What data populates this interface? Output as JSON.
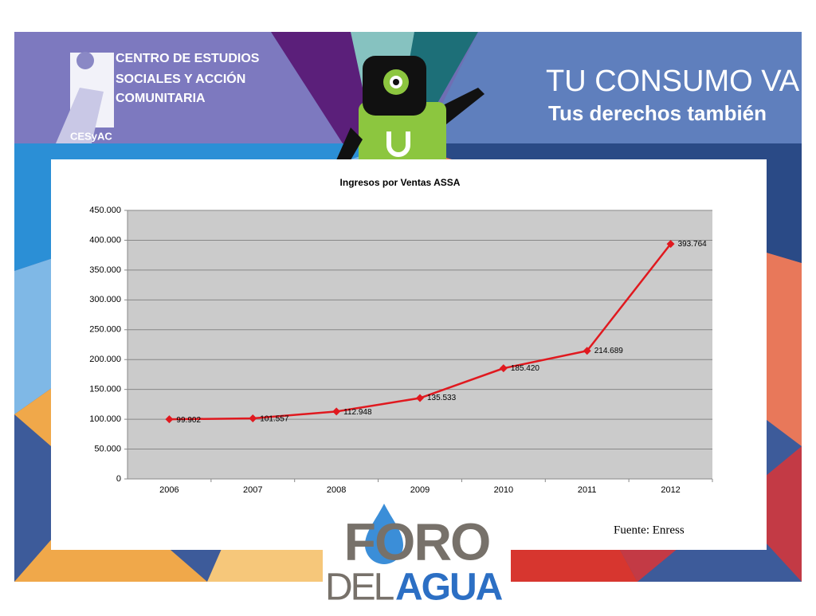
{
  "header": {
    "org_lines": [
      "CENTRO DE ESTUDIOS",
      "SOCIALES Y ACCIÓN",
      "COMUNITARIA"
    ],
    "org_short": "CESyAC",
    "campaign_title": "TU CONSUMO VALE",
    "campaign_subtitle": "Tus derechos también"
  },
  "footer": {
    "source": "Fuente: Enress",
    "logo_top": "FORO",
    "logo_left": "DEL",
    "logo_right": "AGUA"
  },
  "chart_data": {
    "type": "line",
    "title": "Ingresos por Ventas ASSA",
    "categories": [
      "2006",
      "2007",
      "2008",
      "2009",
      "2010",
      "2011",
      "2012"
    ],
    "series": [
      {
        "color": "#e0191f",
        "values": [
          99902,
          101557,
          112948,
          135533,
          185420,
          214689,
          393764
        ],
        "value_labels": [
          "99.902",
          "101.557",
          "112.948",
          "135.533",
          "185.420",
          "214.689",
          "393.764"
        ]
      }
    ],
    "ylim": [
      0,
      450000
    ],
    "yticks": [
      0,
      {
        "value": 50000,
        "label": "50.000"
      },
      {
        "value": 100000,
        "label": "100.000"
      },
      {
        "value": 150000,
        "label": "150.000"
      },
      {
        "value": 200000,
        "label": "200.000"
      },
      {
        "value": 250000,
        "label": "250.000"
      },
      {
        "value": 300000,
        "label": "300.000"
      },
      {
        "value": 350000,
        "label": "350.000"
      },
      {
        "value": 400000,
        "label": "400.000"
      },
      {
        "value": 450000,
        "label": "450.000"
      }
    ],
    "grid": true
  }
}
